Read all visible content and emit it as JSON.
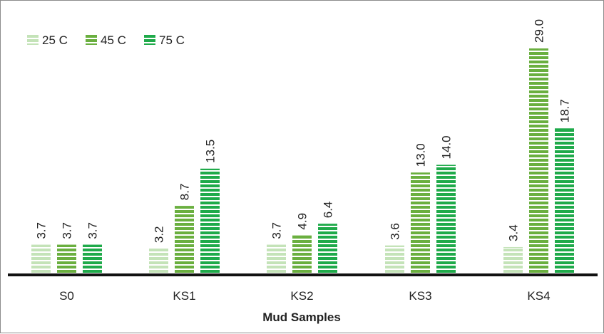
{
  "chart_data": {
    "type": "bar",
    "categories": [
      "S0",
      "KS1",
      "KS2",
      "KS3",
      "KS4"
    ],
    "series": [
      {
        "name": "25 C",
        "color": "#c4e3b8",
        "values": [
          3.7,
          3.2,
          3.7,
          3.6,
          3.4
        ]
      },
      {
        "name": "45 C",
        "color": "#6aaf3f",
        "values": [
          3.7,
          8.7,
          4.9,
          13.0,
          29.0
        ]
      },
      {
        "name": "75 C",
        "color": "#1faa4a",
        "values": [
          3.7,
          13.5,
          6.4,
          14.0,
          18.7
        ]
      }
    ],
    "data_labels": [
      [
        "3.7",
        "3.7",
        "3.7"
      ],
      [
        "3.2",
        "8.7",
        "13.5"
      ],
      [
        "3.7",
        "4.9",
        "6.4"
      ],
      [
        "3.6",
        "13.0",
        "14.0"
      ],
      [
        "3.4",
        "29.0",
        "18.7"
      ]
    ],
    "xlabel": "Mud Samples",
    "ylabel": "",
    "ylim": [
      0,
      29
    ],
    "legend_position": "top-left",
    "grid": false,
    "bar_style": "horizontal-striped"
  }
}
